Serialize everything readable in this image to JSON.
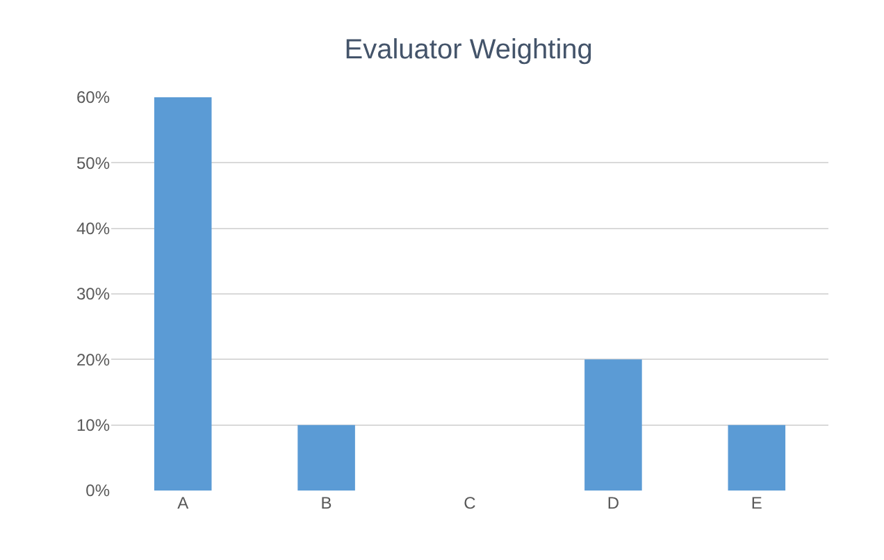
{
  "chart_data": {
    "type": "bar",
    "title": "Evaluator Weighting",
    "categories": [
      "A",
      "B",
      "C",
      "D",
      "E"
    ],
    "values": [
      60,
      10,
      0,
      20,
      10
    ],
    "color": "#5b9bd5",
    "ylim": [
      0,
      60
    ],
    "yticks": [
      {
        "value": 0,
        "label": "0%"
      },
      {
        "value": 10,
        "label": "10%"
      },
      {
        "value": 20,
        "label": "20%"
      },
      {
        "value": 30,
        "label": "30%"
      },
      {
        "value": 40,
        "label": "40%"
      },
      {
        "value": 50,
        "label": "50%"
      },
      {
        "value": 60,
        "label": "60%"
      }
    ],
    "grid": "y"
  }
}
